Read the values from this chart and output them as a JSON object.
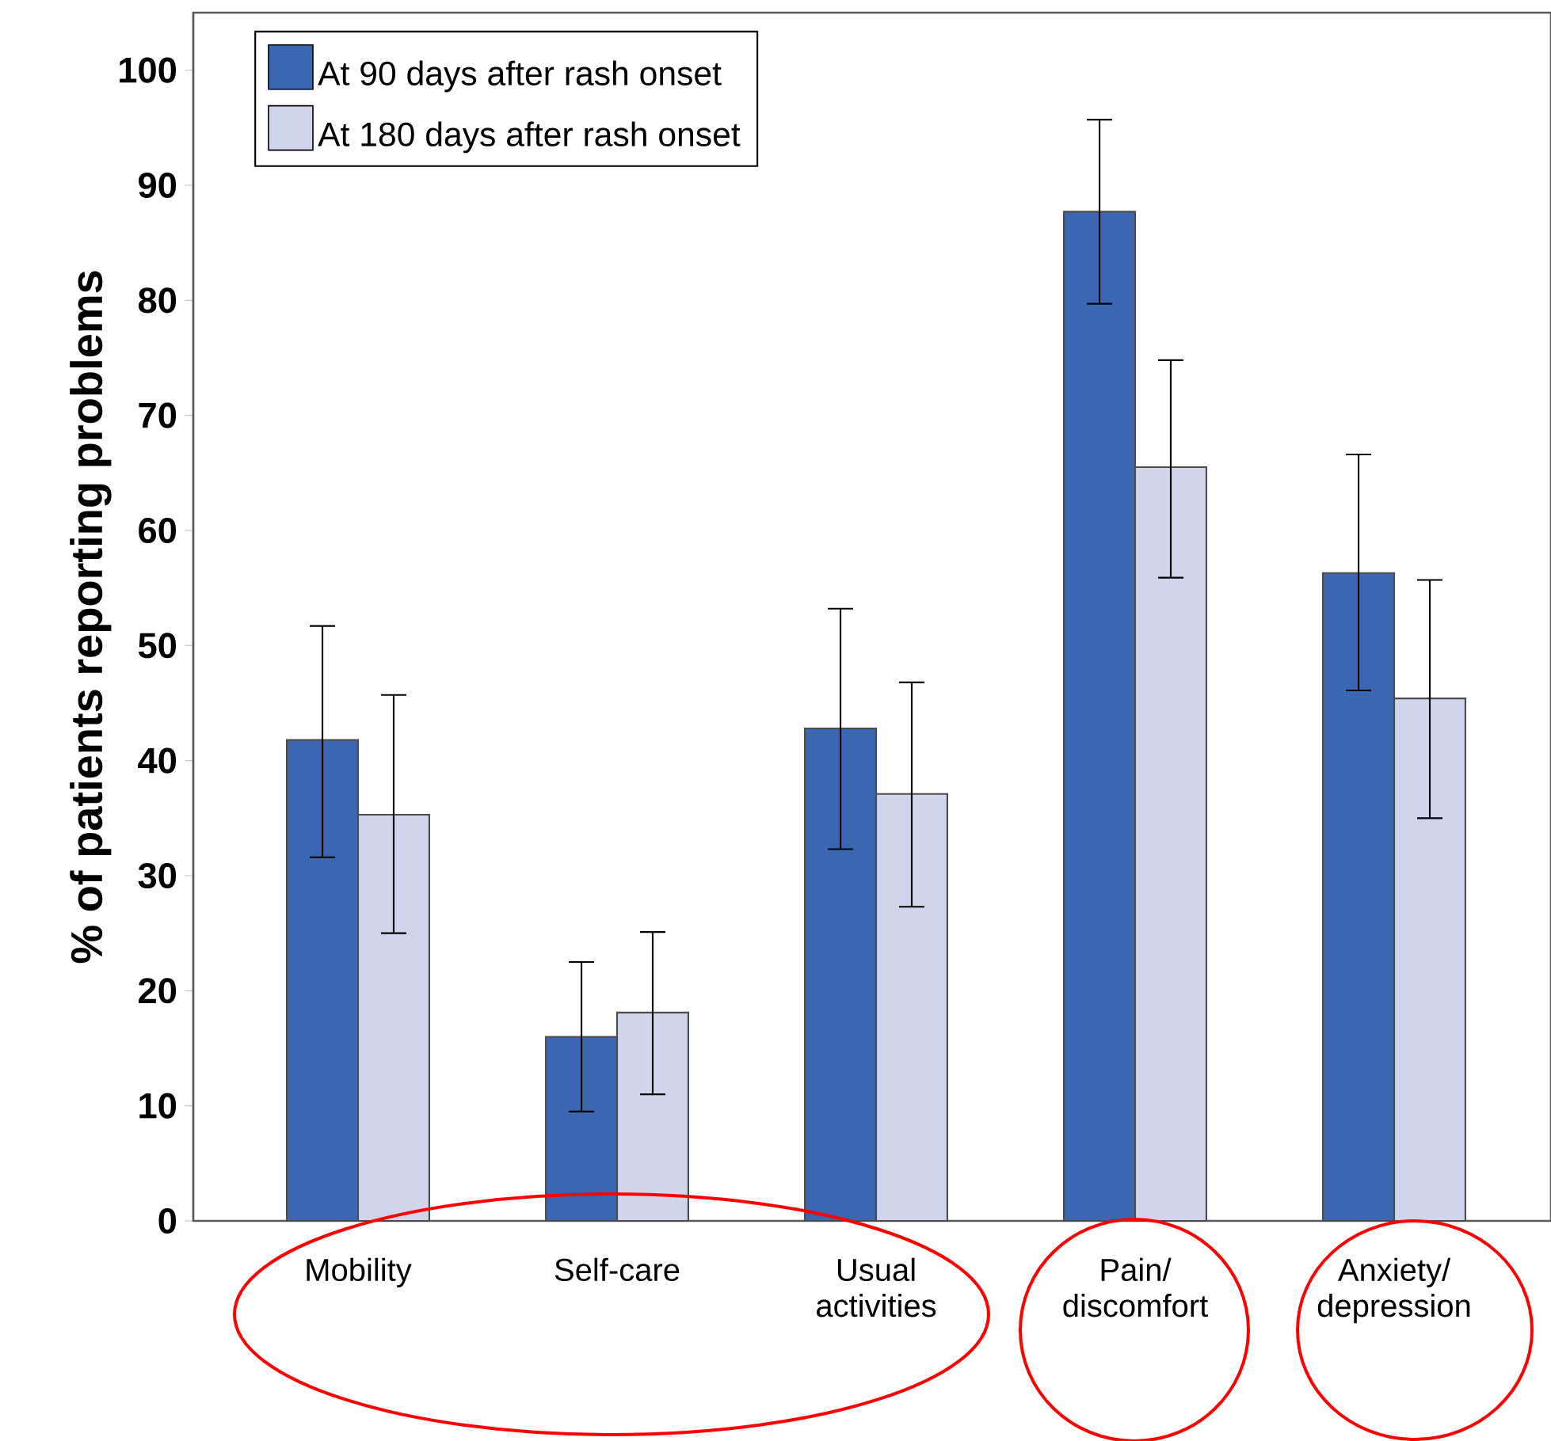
{
  "chart_data": {
    "type": "bar",
    "ylabel": "% of patients reporting problems",
    "categories": [
      "Mobility",
      "Self-care",
      "Usual activities",
      "Pain/ discomfort",
      "Anxiety/ depression"
    ],
    "series": [
      {
        "name": "At 90 days after rash onset",
        "color": "#3b66b1",
        "values": [
          41.8,
          16.0,
          42.8,
          87.7,
          56.3
        ],
        "errors": [
          [
            31.6,
            51.7
          ],
          [
            9.5,
            22.5
          ],
          [
            32.3,
            53.2
          ],
          [
            79.7,
            95.7
          ],
          [
            46.1,
            66.6
          ]
        ]
      },
      {
        "name": "At 180 days after rash onset",
        "color": "#d0d5ec",
        "values": [
          35.3,
          18.1,
          37.1,
          65.5,
          45.4
        ],
        "errors": [
          [
            25.0,
            45.7
          ],
          [
            11.0,
            25.1
          ],
          [
            27.3,
            46.8
          ],
          [
            55.9,
            74.8
          ],
          [
            35.0,
            55.7
          ]
        ]
      }
    ],
    "ylim": [
      0,
      105
    ],
    "yticks": [
      0,
      10,
      20,
      30,
      40,
      50,
      60,
      70,
      80,
      90,
      100
    ],
    "legend": "top left",
    "grid": false
  }
}
